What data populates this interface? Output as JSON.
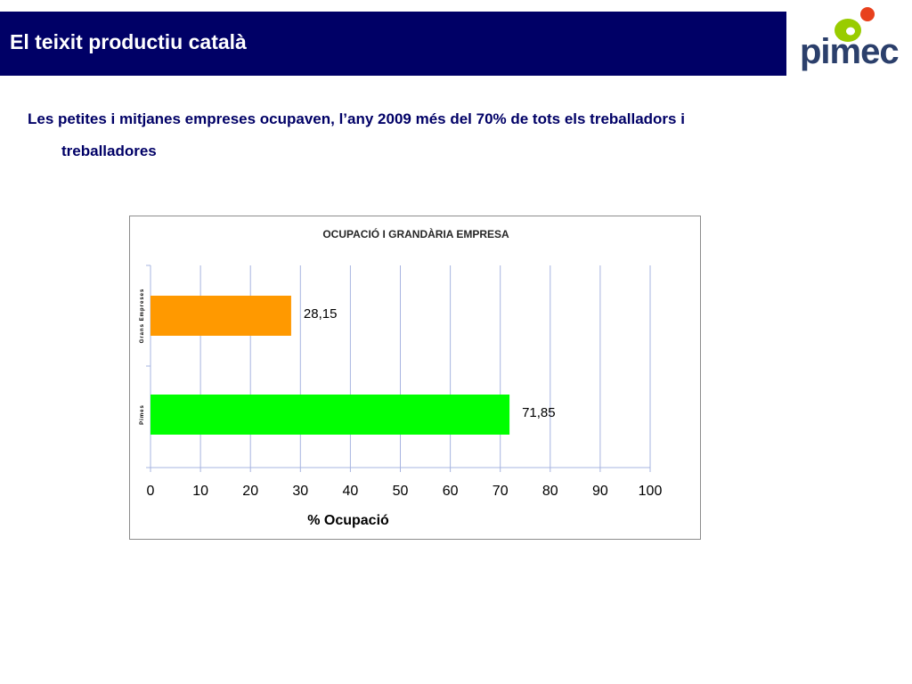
{
  "header": {
    "title": "El teixit productiu català",
    "logo_text": "pimec"
  },
  "subtitle": {
    "line1": "Les petites i mitjanes empreses ocupaven, l’any 2009  més del 70% de tots els treballadors i",
    "line2": "treballadores"
  },
  "colors": {
    "title_bar": "#000066",
    "subtitle_text": "#000066",
    "logo_green": "#99cc00",
    "logo_red": "#e8401c",
    "logo_text": "#2b3f6b",
    "bar_large": "#ff9900",
    "bar_sme": "#00ff00",
    "gridline": "#a7b4e0"
  },
  "chart_data": {
    "type": "bar",
    "orientation": "horizontal",
    "title": "OCUPACIÓ I GRANDÀRIA EMPRESA",
    "xlabel": "% Ocupació",
    "ylabel": "",
    "categories": [
      "Grans Empreses",
      "Pimes"
    ],
    "values": [
      28.15,
      71.85
    ],
    "value_labels": [
      "28,15",
      "71,85"
    ],
    "xlim": [
      0,
      100
    ],
    "xticks": [
      "0",
      "10",
      "20",
      "30",
      "40",
      "50",
      "60",
      "70",
      "80",
      "90",
      "100"
    ],
    "grid": true,
    "legend": "none"
  }
}
